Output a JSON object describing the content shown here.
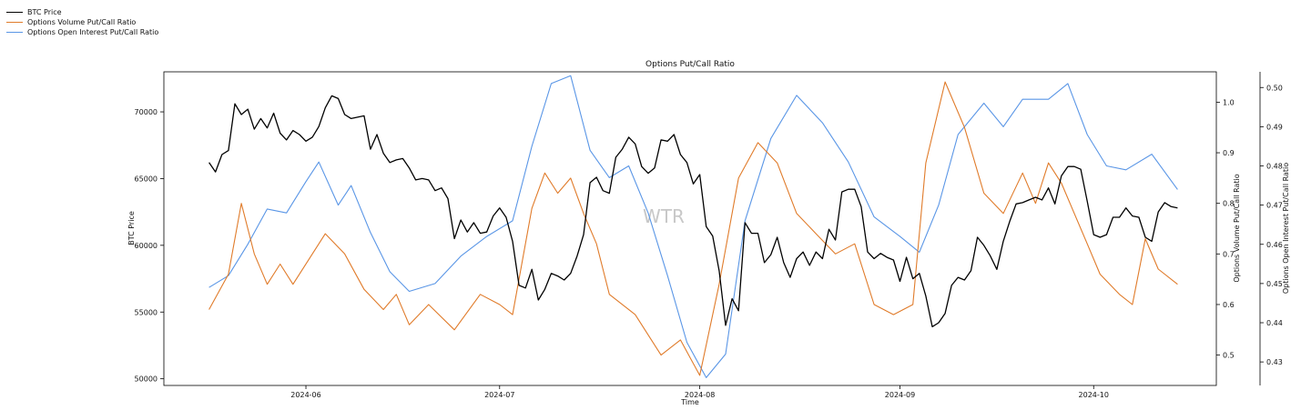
{
  "legend": {
    "items": [
      {
        "label": "BTC Price",
        "color": "#000000"
      },
      {
        "label": "Options Volume Put/Call Ratio",
        "color": "#e07b2a"
      },
      {
        "label": "Options Open Interest Put/Call Ratio",
        "color": "#5a96e6"
      }
    ]
  },
  "watermark": "WTR",
  "chart_data": {
    "type": "line",
    "title": "Options Put/Call Ratio",
    "xlabel": "Time",
    "ylabel": "BTC Price",
    "ylabel_right": "Options Volume Put/Call Ratio",
    "ylabel_right2": "Options Open Interest Put/Call Ratio",
    "xlim": [
      "2024-05-10",
      "2024-10-20"
    ],
    "x_ticks": [
      "2024-06",
      "2024-07",
      "2024-08",
      "2024-09",
      "2024-10"
    ],
    "ylim": [
      49500,
      73000
    ],
    "y_ticks": [
      50000,
      55000,
      60000,
      65000,
      70000
    ],
    "ylim_right": [
      0.44,
      1.06
    ],
    "y_ticks_right": [
      0.5,
      0.6,
      0.7,
      0.8,
      0.9,
      1.0
    ],
    "ylim_right2": [
      0.424,
      0.504
    ],
    "y_ticks_right2": [
      0.43,
      0.44,
      0.45,
      0.46,
      0.47,
      0.48,
      0.49,
      0.5
    ],
    "grid": false,
    "legend_position": "top-left",
    "series": [
      {
        "name": "BTC Price",
        "axis": "left",
        "color": "#000000",
        "points": [
          [
            "2024-05-17",
            66200
          ],
          [
            "2024-05-18",
            65500
          ],
          [
            "2024-05-19",
            66800
          ],
          [
            "2024-05-20",
            67100
          ],
          [
            "2024-05-21",
            70600
          ],
          [
            "2024-05-22",
            69800
          ],
          [
            "2024-05-23",
            70200
          ],
          [
            "2024-05-24",
            68700
          ],
          [
            "2024-05-25",
            69500
          ],
          [
            "2024-05-26",
            68800
          ],
          [
            "2024-05-27",
            69900
          ],
          [
            "2024-05-28",
            68400
          ],
          [
            "2024-05-29",
            67900
          ],
          [
            "2024-05-30",
            68600
          ],
          [
            "2024-05-31",
            68300
          ],
          [
            "2024-06-01",
            67800
          ],
          [
            "2024-06-02",
            68100
          ],
          [
            "2024-06-03",
            68900
          ],
          [
            "2024-06-04",
            70300
          ],
          [
            "2024-06-05",
            71200
          ],
          [
            "2024-06-06",
            71000
          ],
          [
            "2024-06-07",
            69800
          ],
          [
            "2024-06-08",
            69500
          ],
          [
            "2024-06-09",
            69600
          ],
          [
            "2024-06-10",
            69700
          ],
          [
            "2024-06-11",
            67200
          ],
          [
            "2024-06-12",
            68300
          ],
          [
            "2024-06-13",
            66900
          ],
          [
            "2024-06-14",
            66200
          ],
          [
            "2024-06-15",
            66400
          ],
          [
            "2024-06-16",
            66500
          ],
          [
            "2024-06-17",
            65800
          ],
          [
            "2024-06-18",
            64900
          ],
          [
            "2024-06-19",
            65000
          ],
          [
            "2024-06-20",
            64900
          ],
          [
            "2024-06-21",
            64100
          ],
          [
            "2024-06-22",
            64300
          ],
          [
            "2024-06-23",
            63500
          ],
          [
            "2024-06-24",
            60500
          ],
          [
            "2024-06-25",
            61900
          ],
          [
            "2024-06-26",
            61000
          ],
          [
            "2024-06-27",
            61700
          ],
          [
            "2024-06-28",
            60900
          ],
          [
            "2024-06-29",
            61000
          ],
          [
            "2024-06-30",
            62200
          ],
          [
            "2024-07-01",
            62800
          ],
          [
            "2024-07-02",
            62100
          ],
          [
            "2024-07-03",
            60300
          ],
          [
            "2024-07-04",
            57000
          ],
          [
            "2024-07-05",
            56800
          ],
          [
            "2024-07-06",
            58200
          ],
          [
            "2024-07-07",
            55900
          ],
          [
            "2024-07-08",
            56700
          ],
          [
            "2024-07-09",
            57900
          ],
          [
            "2024-07-10",
            57700
          ],
          [
            "2024-07-11",
            57400
          ],
          [
            "2024-07-12",
            57900
          ],
          [
            "2024-07-13",
            59200
          ],
          [
            "2024-07-14",
            60800
          ],
          [
            "2024-07-15",
            64700
          ],
          [
            "2024-07-16",
            65100
          ],
          [
            "2024-07-17",
            64100
          ],
          [
            "2024-07-18",
            63900
          ],
          [
            "2024-07-19",
            66600
          ],
          [
            "2024-07-20",
            67200
          ],
          [
            "2024-07-21",
            68100
          ],
          [
            "2024-07-22",
            67600
          ],
          [
            "2024-07-23",
            65900
          ],
          [
            "2024-07-24",
            65400
          ],
          [
            "2024-07-25",
            65800
          ],
          [
            "2024-07-26",
            67900
          ],
          [
            "2024-07-27",
            67800
          ],
          [
            "2024-07-28",
            68300
          ],
          [
            "2024-07-29",
            66800
          ],
          [
            "2024-07-30",
            66200
          ],
          [
            "2024-07-31",
            64600
          ],
          [
            "2024-08-01",
            65300
          ],
          [
            "2024-08-02",
            61400
          ],
          [
            "2024-08-03",
            60700
          ],
          [
            "2024-08-04",
            58100
          ],
          [
            "2024-08-05",
            54000
          ],
          [
            "2024-08-06",
            56000
          ],
          [
            "2024-08-07",
            55100
          ],
          [
            "2024-08-08",
            61700
          ],
          [
            "2024-08-09",
            60900
          ],
          [
            "2024-08-10",
            60900
          ],
          [
            "2024-08-11",
            58700
          ],
          [
            "2024-08-12",
            59300
          ],
          [
            "2024-08-13",
            60600
          ],
          [
            "2024-08-14",
            58700
          ],
          [
            "2024-08-15",
            57600
          ],
          [
            "2024-08-16",
            59000
          ],
          [
            "2024-08-17",
            59500
          ],
          [
            "2024-08-18",
            58500
          ],
          [
            "2024-08-19",
            59500
          ],
          [
            "2024-08-20",
            59000
          ],
          [
            "2024-08-21",
            61200
          ],
          [
            "2024-08-22",
            60400
          ],
          [
            "2024-08-23",
            64000
          ],
          [
            "2024-08-24",
            64200
          ],
          [
            "2024-08-25",
            64200
          ],
          [
            "2024-08-26",
            62900
          ],
          [
            "2024-08-27",
            59500
          ],
          [
            "2024-08-28",
            59000
          ],
          [
            "2024-08-29",
            59400
          ],
          [
            "2024-08-30",
            59100
          ],
          [
            "2024-08-31",
            58900
          ],
          [
            "2024-09-01",
            57300
          ],
          [
            "2024-09-02",
            59100
          ],
          [
            "2024-09-03",
            57500
          ],
          [
            "2024-09-04",
            57900
          ],
          [
            "2024-09-05",
            56200
          ],
          [
            "2024-09-06",
            53900
          ],
          [
            "2024-09-07",
            54200
          ],
          [
            "2024-09-08",
            54900
          ],
          [
            "2024-09-09",
            57000
          ],
          [
            "2024-09-10",
            57600
          ],
          [
            "2024-09-11",
            57400
          ],
          [
            "2024-09-12",
            58100
          ],
          [
            "2024-09-13",
            60600
          ],
          [
            "2024-09-14",
            60000
          ],
          [
            "2024-09-15",
            59200
          ],
          [
            "2024-09-16",
            58200
          ],
          [
            "2024-09-17",
            60300
          ],
          [
            "2024-09-18",
            61800
          ],
          [
            "2024-09-19",
            63100
          ],
          [
            "2024-09-20",
            63200
          ],
          [
            "2024-09-21",
            63400
          ],
          [
            "2024-09-22",
            63600
          ],
          [
            "2024-09-23",
            63400
          ],
          [
            "2024-09-24",
            64300
          ],
          [
            "2024-09-25",
            63100
          ],
          [
            "2024-09-26",
            65200
          ],
          [
            "2024-09-27",
            65900
          ],
          [
            "2024-09-28",
            65900
          ],
          [
            "2024-09-29",
            65700
          ],
          [
            "2024-09-30",
            63300
          ],
          [
            "2024-10-01",
            60800
          ],
          [
            "2024-10-02",
            60600
          ],
          [
            "2024-10-03",
            60800
          ],
          [
            "2024-10-04",
            62100
          ],
          [
            "2024-10-05",
            62100
          ],
          [
            "2024-10-06",
            62800
          ],
          [
            "2024-10-07",
            62200
          ],
          [
            "2024-10-08",
            62100
          ],
          [
            "2024-10-09",
            60600
          ],
          [
            "2024-10-10",
            60300
          ],
          [
            "2024-10-11",
            62500
          ],
          [
            "2024-10-12",
            63200
          ],
          [
            "2024-10-13",
            62900
          ],
          [
            "2024-10-14",
            62800
          ]
        ]
      },
      {
        "name": "Options Volume Put/Call Ratio",
        "axis": "right",
        "color": "#e07b2a",
        "points": [
          [
            "2024-05-17",
            0.59
          ],
          [
            "2024-05-20",
            0.66
          ],
          [
            "2024-05-22",
            0.8
          ],
          [
            "2024-05-24",
            0.7
          ],
          [
            "2024-05-26",
            0.64
          ],
          [
            "2024-05-28",
            0.68
          ],
          [
            "2024-05-30",
            0.64
          ],
          [
            "2024-06-02",
            0.7
          ],
          [
            "2024-06-04",
            0.74
          ],
          [
            "2024-06-07",
            0.7
          ],
          [
            "2024-06-10",
            0.63
          ],
          [
            "2024-06-13",
            0.59
          ],
          [
            "2024-06-15",
            0.62
          ],
          [
            "2024-06-17",
            0.56
          ],
          [
            "2024-06-20",
            0.6
          ],
          [
            "2024-06-24",
            0.55
          ],
          [
            "2024-06-28",
            0.62
          ],
          [
            "2024-07-01",
            0.6
          ],
          [
            "2024-07-03",
            0.58
          ],
          [
            "2024-07-06",
            0.79
          ],
          [
            "2024-07-08",
            0.86
          ],
          [
            "2024-07-10",
            0.82
          ],
          [
            "2024-07-12",
            0.85
          ],
          [
            "2024-07-14",
            0.78
          ],
          [
            "2024-07-16",
            0.72
          ],
          [
            "2024-07-18",
            0.62
          ],
          [
            "2024-07-22",
            0.58
          ],
          [
            "2024-07-26",
            0.5
          ],
          [
            "2024-07-29",
            0.53
          ],
          [
            "2024-08-01",
            0.46
          ],
          [
            "2024-08-04",
            0.64
          ],
          [
            "2024-08-07",
            0.85
          ],
          [
            "2024-08-10",
            0.92
          ],
          [
            "2024-08-13",
            0.88
          ],
          [
            "2024-08-16",
            0.78
          ],
          [
            "2024-08-19",
            0.74
          ],
          [
            "2024-08-22",
            0.7
          ],
          [
            "2024-08-25",
            0.72
          ],
          [
            "2024-08-28",
            0.6
          ],
          [
            "2024-08-31",
            0.58
          ],
          [
            "2024-09-03",
            0.6
          ],
          [
            "2024-09-05",
            0.88
          ],
          [
            "2024-09-08",
            1.04
          ],
          [
            "2024-09-11",
            0.95
          ],
          [
            "2024-09-14",
            0.82
          ],
          [
            "2024-09-17",
            0.78
          ],
          [
            "2024-09-20",
            0.86
          ],
          [
            "2024-09-22",
            0.8
          ],
          [
            "2024-09-24",
            0.88
          ],
          [
            "2024-09-26",
            0.84
          ],
          [
            "2024-09-28",
            0.78
          ],
          [
            "2024-09-30",
            0.72
          ],
          [
            "2024-10-02",
            0.66
          ],
          [
            "2024-10-05",
            0.62
          ],
          [
            "2024-10-07",
            0.6
          ],
          [
            "2024-10-09",
            0.73
          ],
          [
            "2024-10-11",
            0.67
          ],
          [
            "2024-10-14",
            0.64
          ]
        ]
      },
      {
        "name": "Options Open Interest Put/Call Ratio",
        "axis": "right2",
        "color": "#5a96e6",
        "points": [
          [
            "2024-05-17",
            0.449
          ],
          [
            "2024-05-20",
            0.452
          ],
          [
            "2024-05-23",
            0.46
          ],
          [
            "2024-05-26",
            0.469
          ],
          [
            "2024-05-29",
            0.468
          ],
          [
            "2024-06-01",
            0.476
          ],
          [
            "2024-06-03",
            0.481
          ],
          [
            "2024-06-06",
            0.47
          ],
          [
            "2024-06-08",
            0.475
          ],
          [
            "2024-06-11",
            0.463
          ],
          [
            "2024-06-14",
            0.453
          ],
          [
            "2024-06-17",
            0.448
          ],
          [
            "2024-06-21",
            0.45
          ],
          [
            "2024-06-25",
            0.457
          ],
          [
            "2024-06-29",
            0.462
          ],
          [
            "2024-07-03",
            0.466
          ],
          [
            "2024-07-06",
            0.485
          ],
          [
            "2024-07-09",
            0.501
          ],
          [
            "2024-07-12",
            0.503
          ],
          [
            "2024-07-15",
            0.484
          ],
          [
            "2024-07-18",
            0.477
          ],
          [
            "2024-07-21",
            0.48
          ],
          [
            "2024-07-24",
            0.468
          ],
          [
            "2024-07-27",
            0.452
          ],
          [
            "2024-07-30",
            0.435
          ],
          [
            "2024-08-02",
            0.426
          ],
          [
            "2024-08-05",
            0.432
          ],
          [
            "2024-08-08",
            0.466
          ],
          [
            "2024-08-12",
            0.487
          ],
          [
            "2024-08-16",
            0.498
          ],
          [
            "2024-08-20",
            0.491
          ],
          [
            "2024-08-24",
            0.481
          ],
          [
            "2024-08-28",
            0.467
          ],
          [
            "2024-09-01",
            0.462
          ],
          [
            "2024-09-04",
            0.458
          ],
          [
            "2024-09-07",
            0.47
          ],
          [
            "2024-09-10",
            0.488
          ],
          [
            "2024-09-14",
            0.496
          ],
          [
            "2024-09-17",
            0.49
          ],
          [
            "2024-09-20",
            0.497
          ],
          [
            "2024-09-24",
            0.497
          ],
          [
            "2024-09-27",
            0.501
          ],
          [
            "2024-09-30",
            0.488
          ],
          [
            "2024-10-03",
            0.48
          ],
          [
            "2024-10-06",
            0.479
          ],
          [
            "2024-10-10",
            0.483
          ],
          [
            "2024-10-14",
            0.474
          ]
        ]
      }
    ]
  }
}
